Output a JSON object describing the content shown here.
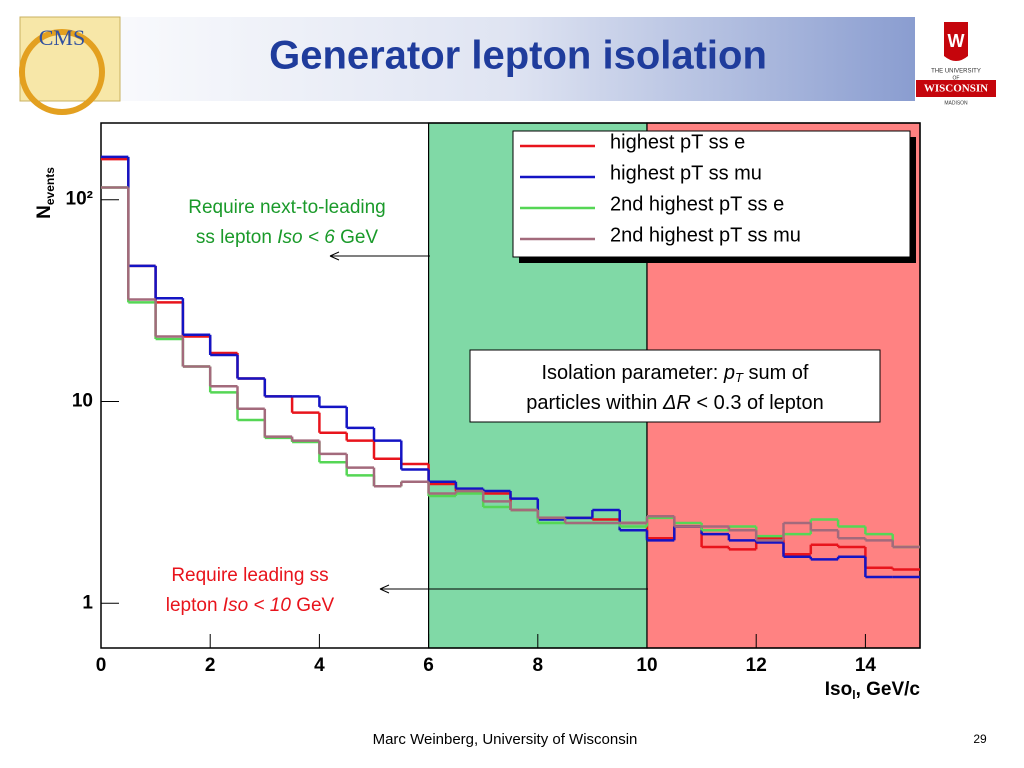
{
  "slide": {
    "title": "Generator lepton isolation",
    "footer": "Marc Weinberg, University of Wisconsin",
    "page": "29",
    "logo_left": "CMS",
    "logo_right": [
      "THE UNIVERSITY",
      "OF",
      "WISCONSIN",
      "MADISON"
    ]
  },
  "chart_data": {
    "type": "histogram",
    "log_y": true,
    "bins": [
      0,
      0.5,
      1,
      1.5,
      2,
      2.5,
      3,
      3.5,
      4,
      4.5,
      5,
      5.5,
      6,
      6.5,
      7,
      7.5,
      8,
      8.5,
      9,
      9.5,
      10,
      10.5,
      11,
      11.5,
      12,
      12.5,
      13,
      13.5,
      14,
      14.5,
      15
    ],
    "xlim": [
      0,
      15
    ],
    "xticks": [
      0,
      2,
      4,
      6,
      8,
      10,
      12,
      14
    ],
    "ylim": [
      0.6,
      240
    ],
    "yticks": [
      1,
      10,
      {
        "value": 100,
        "label": "10²"
      }
    ],
    "xlabel": {
      "main": "Iso",
      "sub": "l",
      "rest": ", GeV/c"
    },
    "ylabel": {
      "main": "N",
      "sub": "events"
    },
    "regions": [
      {
        "from": 6,
        "to": 10,
        "color": "#80d9a6"
      },
      {
        "from": 10,
        "to": 15,
        "color": "#ff8282"
      }
    ],
    "legend": "upper right",
    "series": [
      {
        "name": "highest pT ss e",
        "color": "#e8141c",
        "values": [
          159,
          47,
          31,
          21,
          17.4,
          13,
          10.6,
          8.8,
          7.0,
          6.4,
          5.2,
          4.9,
          3.9,
          3.6,
          3.5,
          2.9,
          2.65,
          2.65,
          2.6,
          2.5,
          2.1,
          2.4,
          1.9,
          1.85,
          2.1,
          1.75,
          1.95,
          1.9,
          1.5,
          1.47
        ]
      },
      {
        "name": "highest pT ss mu",
        "color": "#1414c4",
        "values": [
          163,
          47,
          32.5,
          21.4,
          17,
          13,
          10.6,
          10.6,
          9.4,
          7.4,
          6.4,
          4.6,
          4.0,
          3.7,
          3.6,
          3.3,
          2.6,
          2.65,
          2.9,
          2.3,
          2.05,
          2.4,
          2.2,
          2.05,
          2.0,
          1.7,
          1.65,
          1.7,
          1.35,
          1.35
        ]
      },
      {
        "name": "2nd highest pT ss e",
        "color": "#55d655",
        "values": [
          115,
          31,
          20.4,
          14.9,
          11.1,
          8.1,
          6.6,
          6.3,
          5.0,
          4.3,
          3.8,
          4.0,
          3.4,
          3.5,
          3.0,
          2.9,
          2.5,
          2.5,
          2.5,
          2.4,
          2.65,
          2.5,
          2.3,
          2.4,
          2.15,
          2.2,
          2.6,
          2.4,
          2.2,
          1.9
        ]
      },
      {
        "name": "2nd highest pT ss mu",
        "color": "#a36a7c",
        "values": [
          115,
          32,
          21,
          14.9,
          11.9,
          9.2,
          6.7,
          6.4,
          5.5,
          4.7,
          3.8,
          4.0,
          3.5,
          3.6,
          3.2,
          2.9,
          2.65,
          2.5,
          2.5,
          2.5,
          2.7,
          2.4,
          2.4,
          2.3,
          2.05,
          2.5,
          2.3,
          2.1,
          2.05,
          1.9
        ]
      }
    ],
    "annotations": {
      "next_to_leading": [
        "Require next-to-leading",
        "ss lepton ",
        "Iso < 6",
        " GeV"
      ],
      "leading": [
        "Require leading ss",
        "lepton ",
        "Iso < 10",
        " GeV"
      ],
      "isolation": [
        "Isolation parameter: ",
        "p",
        "T",
        " sum of",
        "particles within ",
        "ΔR",
        " < 0.3 of lepton"
      ]
    }
  }
}
